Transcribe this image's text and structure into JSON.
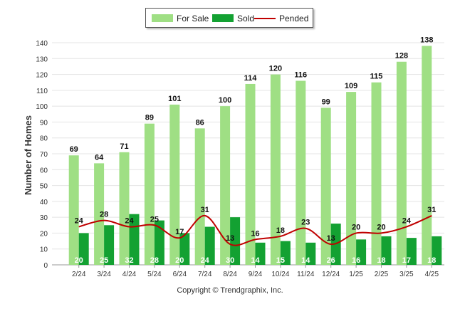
{
  "legend": {
    "for_sale": "For Sale",
    "sold": "Sold",
    "pended": "Pended"
  },
  "colors": {
    "for_sale": "#9fdf84",
    "sold": "#13a132",
    "pended": "#c00000"
  },
  "copyright": "Copyright © Trendgraphix, Inc.",
  "chart_data": {
    "type": "bar",
    "categories": [
      "2/24",
      "3/24",
      "4/24",
      "5/24",
      "6/24",
      "7/24",
      "8/24",
      "9/24",
      "10/24",
      "11/24",
      "12/24",
      "1/25",
      "2/25",
      "3/25",
      "4/25"
    ],
    "series": [
      {
        "name": "For Sale",
        "type": "bar",
        "values": [
          69,
          64,
          71,
          89,
          101,
          86,
          100,
          114,
          120,
          116,
          99,
          109,
          115,
          128,
          138
        ]
      },
      {
        "name": "Sold",
        "type": "bar",
        "values": [
          20,
          25,
          32,
          28,
          20,
          24,
          30,
          14,
          15,
          14,
          26,
          16,
          18,
          17,
          18
        ]
      },
      {
        "name": "Pended",
        "type": "line",
        "values": [
          24,
          28,
          24,
          25,
          17,
          31,
          13,
          16,
          18,
          23,
          13,
          20,
          20,
          24,
          31
        ]
      }
    ],
    "xlabel": "",
    "ylabel": "Number of Homes",
    "ylim": [
      0,
      140
    ],
    "yticks": [
      0,
      10,
      20,
      30,
      40,
      50,
      60,
      70,
      80,
      90,
      100,
      110,
      120,
      130,
      140
    ],
    "grid": true,
    "legend_position": "top"
  }
}
